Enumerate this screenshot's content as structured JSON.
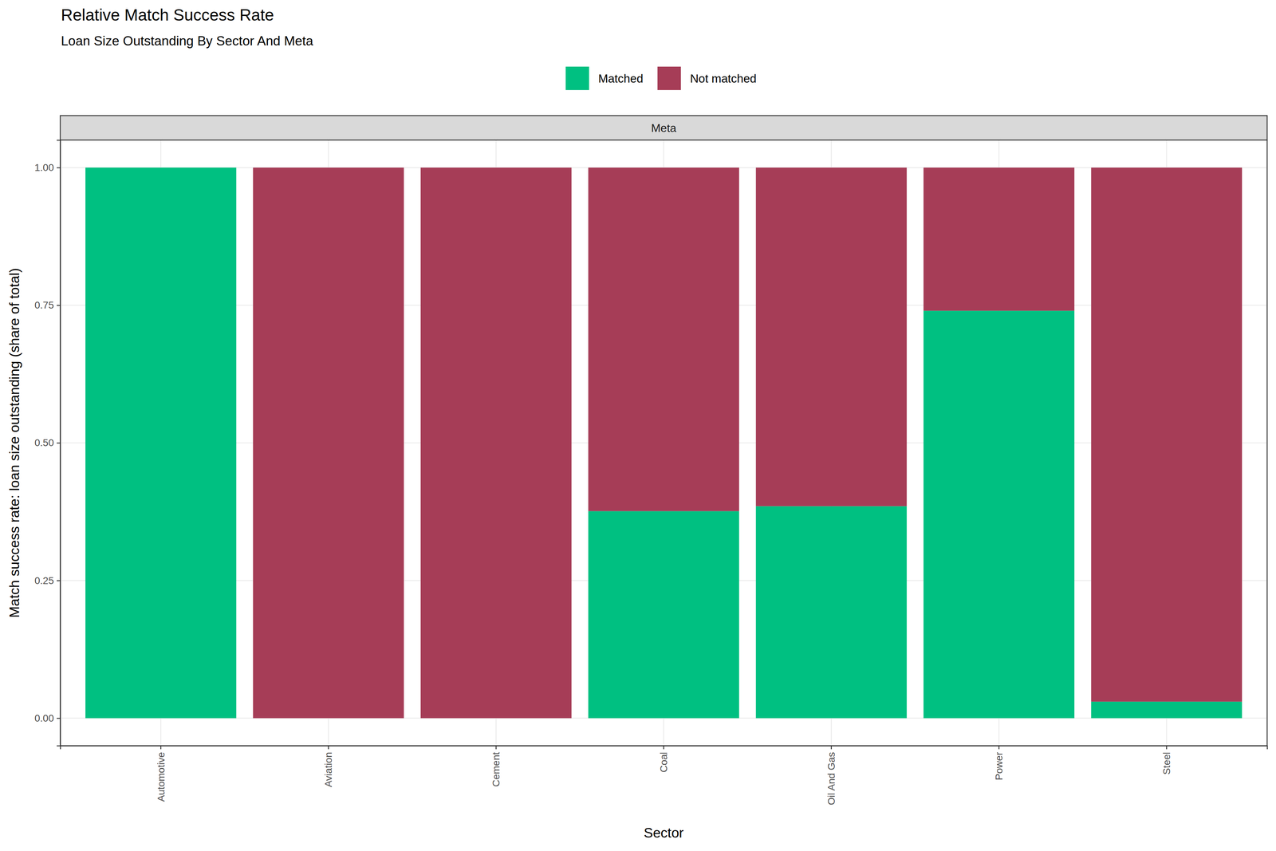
{
  "chart_data": {
    "type": "bar",
    "title": "Relative Match Success Rate",
    "subtitle": "Loan Size Outstanding By Sector And Meta",
    "facet": "Meta",
    "x_label": "Sector",
    "y_label": "Match success rate: loan size outstanding (share of total)",
    "categories": [
      "Automotive",
      "Aviation",
      "Cement",
      "Coal",
      "Oil And Gas",
      "Power",
      "Steel"
    ],
    "series": [
      {
        "name": "Matched",
        "color": "#00c081",
        "values": [
          1.0,
          0.0,
          0.0,
          0.376,
          0.385,
          0.74,
          0.03
        ]
      },
      {
        "name": "Not matched",
        "color": "#a63d57",
        "values": [
          0.0,
          1.0,
          1.0,
          0.624,
          0.615,
          0.26,
          0.97
        ]
      }
    ],
    "stacked": true,
    "legend": "top",
    "grid": true,
    "ylim": [
      -0.05,
      1.05
    ],
    "yticks": [
      {
        "value": 0,
        "label": "0.00"
      },
      {
        "value": 0.25,
        "label": "0.25"
      },
      {
        "value": 0.5,
        "label": "0.50"
      },
      {
        "value": 0.75,
        "label": "0.75"
      },
      {
        "value": 1,
        "label": "1.00"
      }
    ]
  }
}
